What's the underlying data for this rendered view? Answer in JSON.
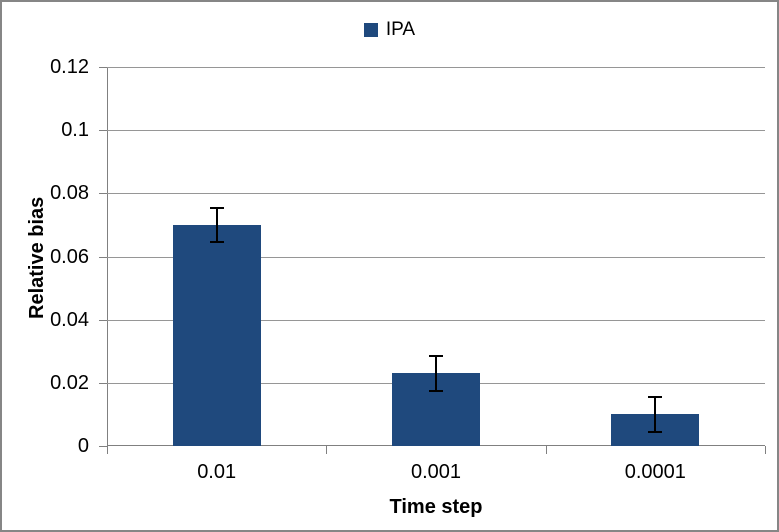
{
  "chart_data": {
    "type": "bar",
    "title": "",
    "legend": {
      "label": "IPA",
      "position": "top"
    },
    "categories": [
      "0.01",
      "0.001",
      "0.0001"
    ],
    "series": [
      {
        "name": "IPA",
        "values": [
          0.07,
          0.023,
          0.01
        ],
        "errors": [
          0.0055,
          0.0055,
          0.0055
        ],
        "color": "#1F497D"
      }
    ],
    "xlabel": "Time step",
    "ylabel": "Relative bias",
    "ylim": [
      0,
      0.12
    ],
    "yticks": [
      0,
      0.02,
      0.04,
      0.06,
      0.08,
      0.1,
      0.12
    ],
    "ytick_labels": [
      "0",
      "0.02",
      "0.04",
      "0.06",
      "0.08",
      "0.1",
      "0.12"
    ],
    "grid": true,
    "error_bars": true,
    "legend_position": "top"
  },
  "colors": {
    "bar": "#1F497D",
    "gridline": "#969696",
    "axis": "#808080",
    "frame_border": "#868686",
    "error_bar": "#000000",
    "text": "#000000",
    "background": "#FFFFFF"
  }
}
